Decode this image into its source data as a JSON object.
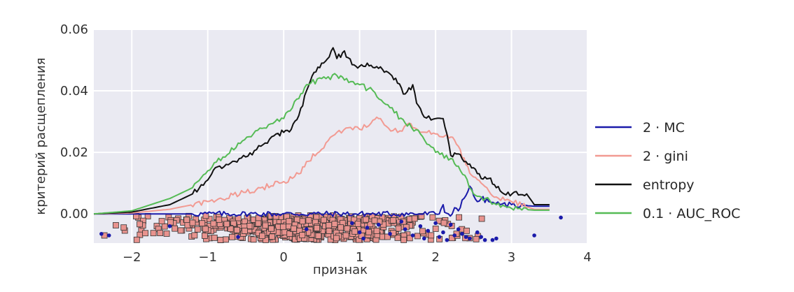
{
  "chart_data": {
    "type": "line",
    "title": "",
    "xlabel": "признак",
    "ylabel": "критерий расщепления",
    "xlim": [
      -2.5,
      4.0
    ],
    "ylim": [
      -0.0095,
      0.06
    ],
    "x_ticks": [
      -2,
      -1,
      0,
      1,
      2,
      3,
      4
    ],
    "x_tick_labels": [
      "−2",
      "−1",
      "0",
      "1",
      "2",
      "3",
      "4"
    ],
    "y_ticks": [
      0.0,
      0.02,
      0.04,
      0.06
    ],
    "y_tick_labels": [
      "0.00",
      "0.02",
      "0.04",
      "0.06"
    ],
    "grid": true,
    "background": "#eaeaf2",
    "legend_position": "right, outside",
    "series": [
      {
        "name": "2 · MC",
        "color": "#1a1aaa",
        "points": [
          [
            -2.5,
            0.0
          ],
          [
            2.0,
            0.0
          ],
          [
            2.05,
            0.0
          ],
          [
            2.07,
            0.0015
          ],
          [
            2.1,
            0.003
          ],
          [
            2.12,
            0.0005
          ],
          [
            2.17,
            0.0
          ],
          [
            2.22,
            0.0
          ],
          [
            2.25,
            0.002
          ],
          [
            2.3,
            0.001
          ],
          [
            2.35,
            0.0045
          ],
          [
            2.4,
            0.006
          ],
          [
            2.45,
            0.009
          ],
          [
            2.5,
            0.006
          ],
          [
            2.55,
            0.004
          ],
          [
            2.6,
            0.005
          ],
          [
            2.7,
            0.004
          ],
          [
            2.85,
            0.003
          ],
          [
            3.0,
            0.003
          ],
          [
            3.3,
            0.0025
          ],
          [
            3.5,
            0.0025
          ]
        ]
      },
      {
        "name": "2 · gini",
        "color": "#f29a92",
        "points": [
          [
            -2.5,
            0.0
          ],
          [
            -2.0,
            0.0003
          ],
          [
            -1.5,
            0.0015
          ],
          [
            -1.0,
            0.004
          ],
          [
            -0.5,
            0.007
          ],
          [
            0.0,
            0.0105
          ],
          [
            0.2,
            0.013
          ],
          [
            0.3,
            0.017
          ],
          [
            0.5,
            0.021
          ],
          [
            0.7,
            0.0265
          ],
          [
            0.85,
            0.028
          ],
          [
            1.0,
            0.0275
          ],
          [
            1.15,
            0.0295
          ],
          [
            1.25,
            0.031
          ],
          [
            1.35,
            0.0285
          ],
          [
            1.5,
            0.0265
          ],
          [
            1.65,
            0.0295
          ],
          [
            1.7,
            0.028
          ],
          [
            1.8,
            0.0265
          ],
          [
            2.0,
            0.026
          ],
          [
            2.1,
            0.025
          ],
          [
            2.2,
            0.025
          ],
          [
            2.3,
            0.022
          ],
          [
            2.4,
            0.016
          ],
          [
            2.5,
            0.012
          ],
          [
            2.6,
            0.01
          ],
          [
            2.7,
            0.0075
          ],
          [
            2.8,
            0.0055
          ],
          [
            3.0,
            0.004
          ],
          [
            3.3,
            0.0015
          ],
          [
            3.5,
            0.0015
          ]
        ]
      },
      {
        "name": "entropy",
        "color": "#111111",
        "points": [
          [
            -2.5,
            0.0
          ],
          [
            -2.0,
            0.0006
          ],
          [
            -1.5,
            0.003
          ],
          [
            -1.2,
            0.0065
          ],
          [
            -1.0,
            0.011
          ],
          [
            -0.9,
            0.015
          ],
          [
            -0.7,
            0.0165
          ],
          [
            -0.5,
            0.0185
          ],
          [
            -0.3,
            0.022
          ],
          [
            -0.1,
            0.026
          ],
          [
            0.0,
            0.0265
          ],
          [
            0.1,
            0.0275
          ],
          [
            0.2,
            0.032
          ],
          [
            0.3,
            0.04
          ],
          [
            0.4,
            0.046
          ],
          [
            0.5,
            0.049
          ],
          [
            0.6,
            0.051
          ],
          [
            0.65,
            0.054
          ],
          [
            0.7,
            0.0505
          ],
          [
            0.8,
            0.053
          ],
          [
            0.9,
            0.0485
          ],
          [
            1.0,
            0.048
          ],
          [
            1.1,
            0.049
          ],
          [
            1.2,
            0.0475
          ],
          [
            1.3,
            0.047
          ],
          [
            1.4,
            0.0455
          ],
          [
            1.5,
            0.0425
          ],
          [
            1.6,
            0.039
          ],
          [
            1.7,
            0.042
          ],
          [
            1.75,
            0.036
          ],
          [
            1.85,
            0.0315
          ],
          [
            2.0,
            0.031
          ],
          [
            2.1,
            0.031
          ],
          [
            2.15,
            0.026
          ],
          [
            2.2,
            0.019
          ],
          [
            2.3,
            0.0195
          ],
          [
            2.4,
            0.017
          ],
          [
            2.5,
            0.015
          ],
          [
            2.6,
            0.0115
          ],
          [
            2.7,
            0.0115
          ],
          [
            2.8,
            0.0085
          ],
          [
            2.9,
            0.0065
          ],
          [
            3.2,
            0.0065
          ],
          [
            3.3,
            0.003
          ],
          [
            3.5,
            0.003
          ]
        ]
      },
      {
        "name": "0.1 · AUC_ROC",
        "color": "#55bb55",
        "points": [
          [
            -2.5,
            0.0
          ],
          [
            -2.0,
            0.001
          ],
          [
            -1.5,
            0.005
          ],
          [
            -1.2,
            0.0085
          ],
          [
            -1.0,
            0.014
          ],
          [
            -0.8,
            0.0185
          ],
          [
            -0.6,
            0.023
          ],
          [
            -0.4,
            0.026
          ],
          [
            -0.2,
            0.029
          ],
          [
            0.0,
            0.031
          ],
          [
            0.2,
            0.0375
          ],
          [
            0.3,
            0.042
          ],
          [
            0.5,
            0.044
          ],
          [
            0.7,
            0.045
          ],
          [
            0.8,
            0.0435
          ],
          [
            1.0,
            0.042
          ],
          [
            1.2,
            0.0395
          ],
          [
            1.4,
            0.0345
          ],
          [
            1.6,
            0.0295
          ],
          [
            1.8,
            0.026
          ],
          [
            2.0,
            0.02
          ],
          [
            2.2,
            0.018
          ],
          [
            2.3,
            0.0155
          ],
          [
            2.5,
            0.0065
          ],
          [
            2.6,
            0.0055
          ],
          [
            2.8,
            0.003
          ],
          [
            3.0,
            0.0018
          ],
          [
            3.3,
            0.0012
          ],
          [
            3.5,
            0.0012
          ]
        ]
      }
    ],
    "scatter_class_a": {
      "marker": "square",
      "color": "#e8938e",
      "edgecolor": "#333333",
      "y_range": [
        -0.0085,
        -0.0005
      ],
      "x_distribution": {
        "mean": 0.2,
        "std": 1.0,
        "min": -2.5,
        "max": 2.7,
        "count": 550
      }
    },
    "scatter_class_b": {
      "marker": "dot",
      "color": "#1a1aaa",
      "points": [
        [
          -2.4,
          -0.0065
        ],
        [
          -2.3,
          -0.007
        ],
        [
          -1.5,
          -0.004
        ],
        [
          -0.6,
          -0.0075
        ],
        [
          0.3,
          -0.005
        ],
        [
          0.9,
          -0.003
        ],
        [
          1.0,
          -0.006
        ],
        [
          1.05,
          -0.008
        ],
        [
          1.1,
          -0.0045
        ],
        [
          1.25,
          -0.0035
        ],
        [
          1.4,
          -0.0065
        ],
        [
          1.55,
          -0.0025
        ],
        [
          1.6,
          -0.005
        ],
        [
          1.7,
          -0.007
        ],
        [
          1.8,
          -0.004
        ],
        [
          1.85,
          -0.008
        ],
        [
          1.9,
          -0.0055
        ],
        [
          2.0,
          -0.003
        ],
        [
          2.05,
          -0.0075
        ],
        [
          2.1,
          -0.006
        ],
        [
          2.15,
          -0.0085
        ],
        [
          2.2,
          -0.0035
        ],
        [
          2.25,
          -0.007
        ],
        [
          2.3,
          -0.005
        ],
        [
          2.35,
          -0.0065
        ],
        [
          2.4,
          -0.0075
        ],
        [
          2.45,
          -0.008
        ],
        [
          2.55,
          -0.006
        ],
        [
          2.6,
          -0.0075
        ],
        [
          2.65,
          -0.0085
        ],
        [
          2.75,
          -0.0085
        ],
        [
          2.8,
          -0.008
        ],
        [
          3.3,
          -0.007
        ],
        [
          3.65,
          -0.0012
        ]
      ]
    }
  }
}
